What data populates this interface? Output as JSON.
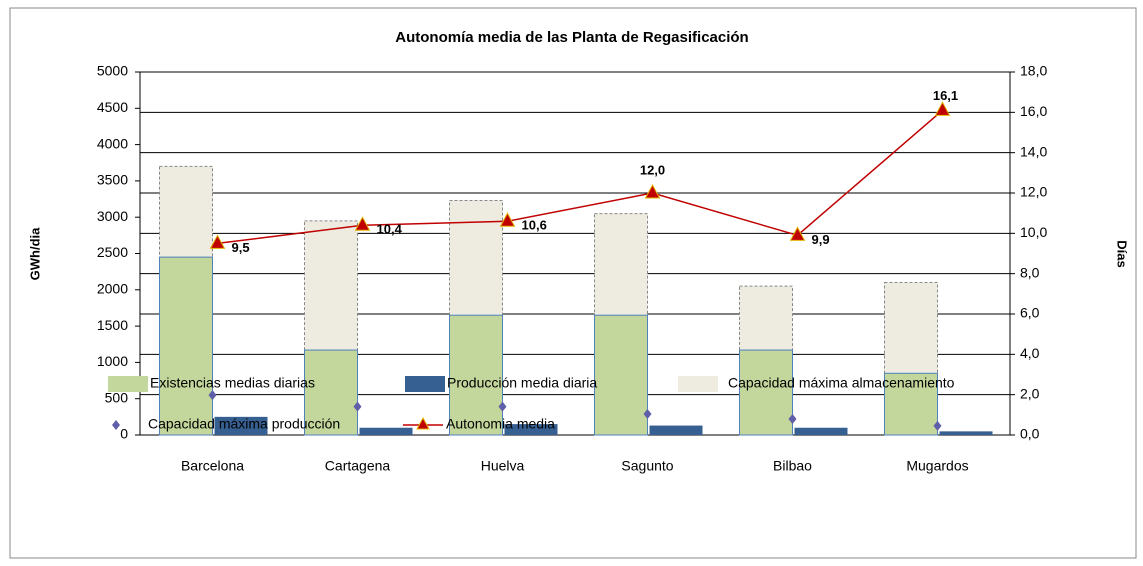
{
  "chart_data": {
    "type": "bar",
    "title": "Autonomía media de las Planta de Regasificación",
    "y_label": "GWh/dia",
    "y2_label": "Días",
    "categories": [
      "Barcelona",
      "Cartagena",
      "Huelva",
      "Sagunto",
      "Bilbao",
      "Mugardos"
    ],
    "ylim": [
      0,
      5000
    ],
    "yticks": [
      0,
      500,
      1000,
      1500,
      2000,
      2500,
      3000,
      3500,
      4000,
      4500,
      5000
    ],
    "y2lim": [
      0,
      18
    ],
    "y2ticks": [
      {
        "value": 0,
        "label": "0,0"
      },
      {
        "value": 2,
        "label": "2,0"
      },
      {
        "value": 4,
        "label": "4,0"
      },
      {
        "value": 6,
        "label": "6,0"
      },
      {
        "value": 8,
        "label": "8,0"
      },
      {
        "value": 10,
        "label": "10,0"
      },
      {
        "value": 12,
        "label": "12,0"
      },
      {
        "value": 14,
        "label": "14,0"
      },
      {
        "value": 16,
        "label": "16,0"
      },
      {
        "value": 18,
        "label": "18,0"
      }
    ],
    "grid": true,
    "series": [
      {
        "name": "Existencias medias diarias",
        "type": "bar",
        "color": "#c3d69b",
        "values": [
          2450,
          1170,
          1650,
          1650,
          1170,
          850
        ]
      },
      {
        "name": "Producción media diaria",
        "type": "bar",
        "color": "#376092",
        "values": [
          250,
          100,
          150,
          130,
          100,
          50
        ]
      },
      {
        "name": "Capacidad máxima almacenamiento",
        "type": "bar",
        "color": "#eeece1",
        "values": [
          3700,
          2950,
          3230,
          3050,
          2050,
          2100
        ]
      },
      {
        "name": "Capacidad máxima producción",
        "type": "scatter",
        "color": "#5f5ea8",
        "values": [
          550,
          390,
          390,
          290,
          220,
          125
        ]
      },
      {
        "name": "Autonomia media",
        "type": "line",
        "axis": "y2",
        "color": "#c00000",
        "values": [
          9.5,
          10.4,
          10.6,
          12.0,
          9.9,
          16.1
        ],
        "value_labels": [
          "9,5",
          "10,4",
          "10,6",
          "12,0",
          "9,9",
          "16,1"
        ]
      }
    ]
  }
}
